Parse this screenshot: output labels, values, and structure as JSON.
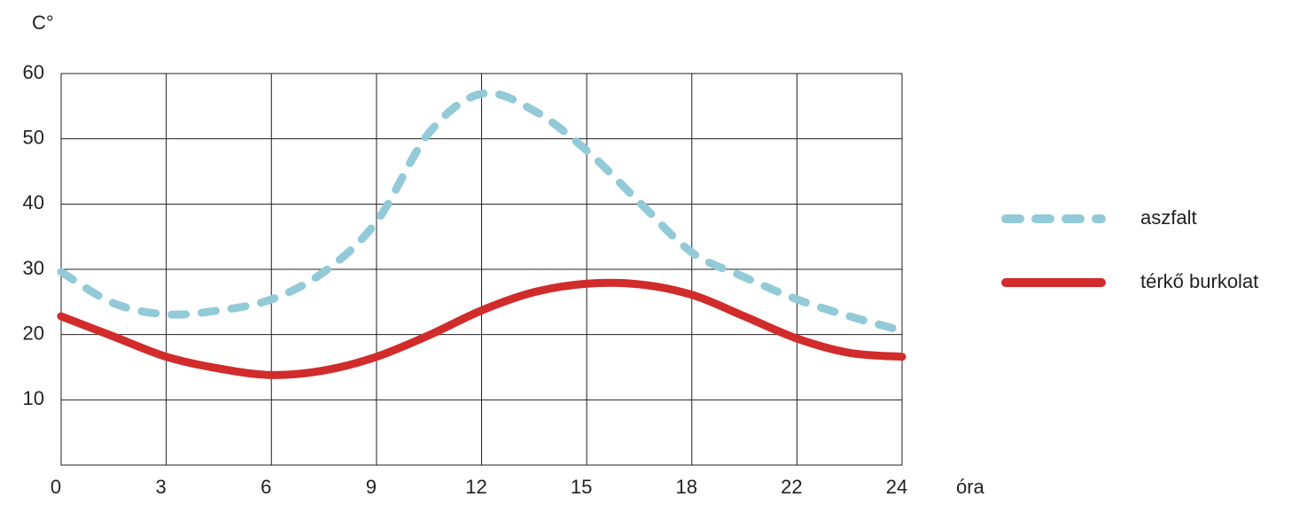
{
  "chart_data": {
    "type": "line",
    "y_label": "C°",
    "x_label": "óra",
    "categories": [
      "0",
      null,
      "3",
      null,
      "6",
      null,
      "9",
      null,
      "12",
      null,
      "15",
      null,
      "18",
      null,
      "22",
      null,
      "24"
    ],
    "series": [
      {
        "name": "aszfalt",
        "color": "#93cad8",
        "dashed": true,
        "values": [
          29.6,
          24.8,
          23.1,
          23.7,
          25.4,
          29.6,
          37.3,
          50.9,
          56.9,
          54.3,
          48.2,
          40.3,
          32.6,
          28.8,
          25.4,
          22.8,
          20.6
        ]
      },
      {
        "name": "térkő burkolat",
        "color": "#d12b2b",
        "dashed": false,
        "values": [
          22.8,
          19.7,
          16.6,
          14.8,
          13.8,
          14.5,
          16.6,
          19.9,
          23.7,
          26.5,
          27.8,
          27.7,
          26.1,
          22.8,
          19.4,
          17.2,
          16.6
        ]
      }
    ],
    "ylim": [
      0,
      60
    ],
    "yticks": [
      10,
      20,
      30,
      40,
      50,
      60
    ],
    "grid": true,
    "legend": "right"
  }
}
